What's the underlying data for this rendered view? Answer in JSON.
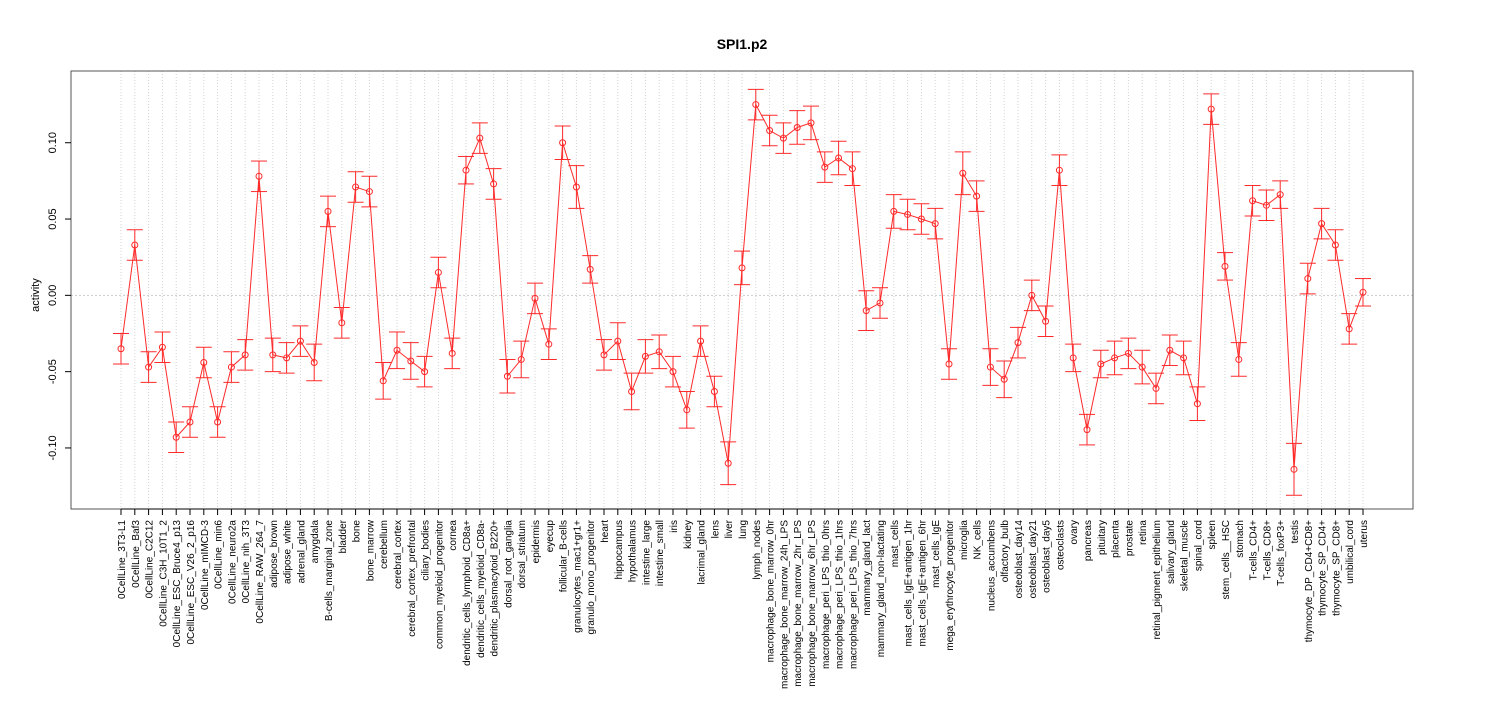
{
  "chart_data": {
    "type": "line",
    "title": "SPI1.p2",
    "xlabel": "",
    "ylabel": "activity",
    "ylim": [
      -0.14,
      0.147
    ],
    "yticks": [
      -0.1,
      -0.05,
      0.0,
      0.05,
      0.1
    ],
    "ytick_labels": [
      "-0.10",
      "-0.05",
      "0.00",
      "0.05",
      "0.10"
    ],
    "reference_line": 0.0,
    "grid": true,
    "color": "#ff2a2a",
    "categories": [
      "0CellLine_3T3-L1",
      "0CellLine_Baf3",
      "0CellLine_C2C12",
      "0CellLine_C3H_10T1_2",
      "0CellLine_ESC_Bruce4_p13",
      "0CellLine_ESC_V26_2_p16",
      "0CellLine_mIMCD-3",
      "0CellLine_min6",
      "0CellLine_neuro2a",
      "0CellLine_nih_3T3",
      "0CellLine_RAW_264_7",
      "adipose_brown",
      "adipose_white",
      "adrenal_gland",
      "amygdala",
      "B-cells_marginal_zone",
      "bladder",
      "bone",
      "bone_marrow",
      "cerebellum",
      "cerebral_cortex",
      "cerebral_cortex_prefrontal",
      "ciliary_bodies",
      "common_myeloid_progenitor",
      "cornea",
      "dendritic_cells_lymphoid_CD8a+",
      "dendritic_cells_myeloid_CD8a-",
      "dendritic_plasmacytoid_B220+",
      "dorsal_root_ganglia",
      "dorsal_striatum",
      "epidermis",
      "eyecup",
      "follicular_B-cells",
      "granulocytes_mac1+gr1+",
      "granulo_mono_progenitor",
      "heart",
      "hippocampus",
      "hypothalamus",
      "intestine_large",
      "intestine_small",
      "iris",
      "kidney",
      "lacrimal_gland",
      "lens",
      "liver",
      "lung",
      "lymph_nodes",
      "macrophage_bone_marrow_0hr",
      "macrophage_bone_marrow_24h_LPS",
      "macrophage_bone_marrow_2hr_LPS",
      "macrophage_bone_marrow_6hr_LPS",
      "macrophage_peri_LPS_thio_0hrs",
      "macrophage_peri_LPS_thio_1hrs",
      "macrophage_peri_LPS_thio_7hrs",
      "mammary_gland_lact",
      "mammary_gland_non-lactating",
      "mast_cells",
      "mast_cells_IgE+antigen_1hr",
      "mast_cells_IgE+antigen_6hr",
      "mast_cells_IgE",
      "mega_erythrocyte_progenitor",
      "microglia",
      "NK_cells",
      "nucleus_accumbens",
      "olfactory_bulb",
      "osteoblast_day14",
      "osteoblast_day21",
      "osteoblast_day5",
      "osteoclasts",
      "ovary",
      "pancreas",
      "pituitary",
      "placenta",
      "prostate",
      "retina",
      "retinal_pigment_epithelium",
      "salivary_gland",
      "skeletal_muscle",
      "spinal_cord",
      "spleen",
      "stem_cells__HSC",
      "stomach",
      "T-cells_CD4+",
      "T-cells_CD8+",
      "T-cells_foxP3+",
      "testis",
      "thymocyte_DP_CD4+CD8+",
      "thymocyte_SP_CD4+",
      "thymocyte_SP_CD8+",
      "umbilical_cord",
      "uterus"
    ],
    "values": [
      -0.035,
      0.033,
      -0.047,
      -0.034,
      -0.093,
      -0.083,
      -0.044,
      -0.083,
      -0.047,
      -0.039,
      0.078,
      -0.039,
      -0.041,
      -0.03,
      -0.044,
      0.055,
      -0.018,
      0.071,
      0.068,
      -0.056,
      -0.036,
      -0.043,
      -0.05,
      0.015,
      -0.038,
      0.082,
      0.103,
      0.073,
      -0.053,
      -0.042,
      -0.002,
      -0.032,
      0.1,
      0.071,
      0.017,
      -0.039,
      -0.03,
      -0.063,
      -0.04,
      -0.037,
      -0.05,
      -0.075,
      -0.03,
      -0.063,
      -0.11,
      0.018,
      0.125,
      0.108,
      0.103,
      0.11,
      0.113,
      0.084,
      0.09,
      0.083,
      -0.01,
      -0.005,
      0.055,
      0.053,
      0.05,
      0.047,
      -0.045,
      0.08,
      0.065,
      -0.047,
      -0.055,
      -0.031,
      0.0,
      -0.017,
      0.082,
      -0.041,
      -0.088,
      -0.045,
      -0.041,
      -0.038,
      -0.047,
      -0.061,
      -0.036,
      -0.041,
      -0.071,
      0.122,
      0.019,
      -0.042,
      0.062,
      0.059,
      0.066,
      -0.114,
      0.011,
      0.047,
      0.033,
      -0.022,
      0.002
    ],
    "errors": [
      0.01,
      0.01,
      0.01,
      0.01,
      0.01,
      0.01,
      0.01,
      0.01,
      0.01,
      0.01,
      0.01,
      0.011,
      0.01,
      0.01,
      0.012,
      0.01,
      0.01,
      0.01,
      0.01,
      0.012,
      0.012,
      0.012,
      0.01,
      0.01,
      0.01,
      0.009,
      0.01,
      0.01,
      0.011,
      0.012,
      0.01,
      0.01,
      0.011,
      0.014,
      0.009,
      0.01,
      0.012,
      0.012,
      0.011,
      0.011,
      0.01,
      0.012,
      0.01,
      0.01,
      0.014,
      0.011,
      0.01,
      0.01,
      0.01,
      0.011,
      0.011,
      0.01,
      0.011,
      0.011,
      0.013,
      0.01,
      0.011,
      0.01,
      0.01,
      0.01,
      0.01,
      0.014,
      0.01,
      0.012,
      0.012,
      0.01,
      0.01,
      0.01,
      0.01,
      0.009,
      0.01,
      0.009,
      0.011,
      0.01,
      0.011,
      0.01,
      0.01,
      0.011,
      0.011,
      0.01,
      0.009,
      0.011,
      0.01,
      0.01,
      0.009,
      0.017,
      0.01,
      0.01,
      0.01,
      0.01,
      0.009
    ]
  }
}
